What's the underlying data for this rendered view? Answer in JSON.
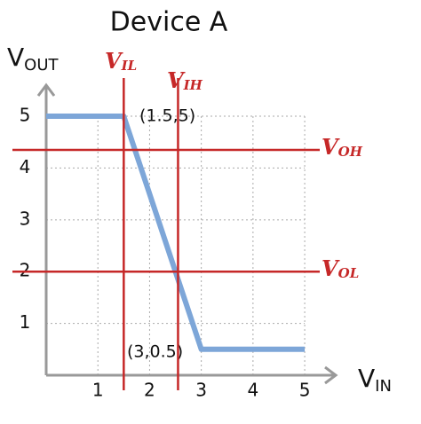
{
  "chart_data": {
    "type": "line",
    "title": "Device A",
    "ylabel": {
      "main": "V",
      "sub": "OUT"
    },
    "xlabel": {
      "main": "V",
      "sub": "IN"
    },
    "series": [
      {
        "color": "#7da6d8",
        "x": [
          0,
          1.5,
          3,
          5
        ],
        "values": [
          5,
          5,
          0.5,
          0.5
        ]
      }
    ],
    "xlim": [
      0,
      5.6
    ],
    "ylim": [
      0,
      5.6
    ],
    "xticks": [
      1,
      2,
      3,
      4,
      5
    ],
    "yticks": [
      1,
      2,
      3,
      4,
      5
    ],
    "grid": true,
    "annotations": [
      {
        "text": "(1.5,5)"
      },
      {
        "text": "(3,0.5)"
      }
    ],
    "vlines": [
      {
        "value": 1.5,
        "label": {
          "main": "V",
          "sub": "IL"
        },
        "color": "#c62828"
      },
      {
        "value": 2.55,
        "label": {
          "main": "V",
          "sub": "IH"
        },
        "color": "#c62828"
      }
    ],
    "hlines": [
      {
        "value": 4.35,
        "label": {
          "main": "V",
          "sub": "OH"
        },
        "color": "#c62828"
      },
      {
        "value": 2,
        "label": {
          "main": "V",
          "sub": "OL"
        },
        "color": "#c62828"
      }
    ]
  }
}
